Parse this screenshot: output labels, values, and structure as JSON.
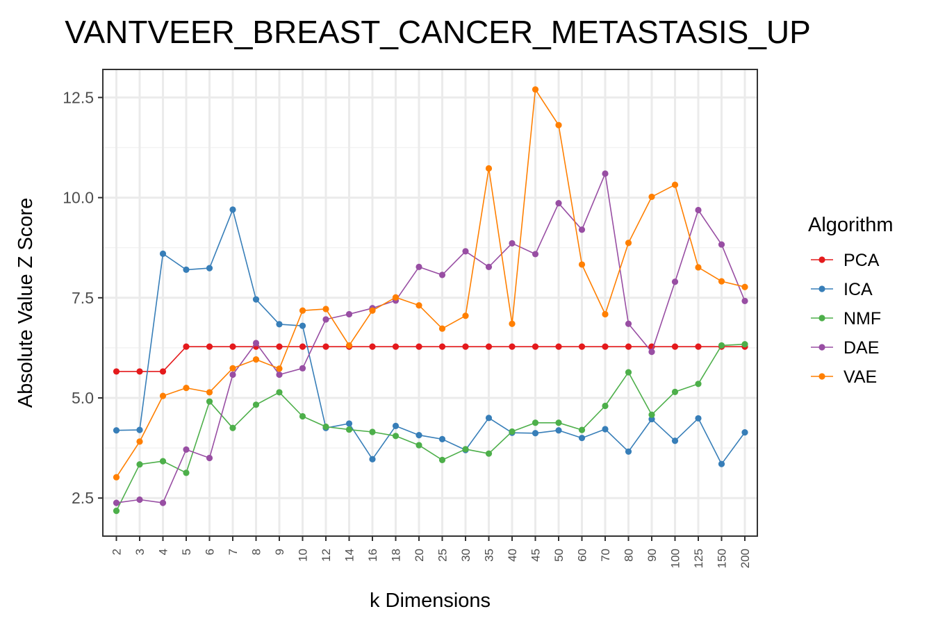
{
  "chart_data": {
    "type": "line",
    "title": "VANTVEER_BREAST_CANCER_METASTASIS_UP",
    "xlabel": "k Dimensions",
    "ylabel": "Absolute Value Z Score",
    "categories": [
      "2",
      "3",
      "4",
      "5",
      "6",
      "7",
      "8",
      "9",
      "10",
      "12",
      "14",
      "16",
      "18",
      "20",
      "25",
      "30",
      "35",
      "40",
      "45",
      "50",
      "60",
      "70",
      "80",
      "90",
      "100",
      "125",
      "150",
      "200"
    ],
    "yticks": [
      "2.5",
      "5.0",
      "7.5",
      "10.0",
      "12.5"
    ],
    "ylim": [
      1.55,
      13.2
    ],
    "grid": true,
    "legend": {
      "title": "Algorithm",
      "position": "right"
    },
    "series": [
      {
        "name": "PCA",
        "color": "#e41a1c",
        "values": [
          5.66,
          5.66,
          5.66,
          6.28,
          6.28,
          6.28,
          6.28,
          6.28,
          6.28,
          6.28,
          6.28,
          6.28,
          6.28,
          6.28,
          6.28,
          6.28,
          6.28,
          6.28,
          6.28,
          6.28,
          6.28,
          6.28,
          6.28,
          6.28,
          6.28,
          6.28,
          6.28,
          6.28
        ]
      },
      {
        "name": "ICA",
        "color": "#377eb8",
        "values": [
          4.19,
          4.2,
          8.6,
          8.2,
          8.24,
          9.7,
          7.46,
          6.84,
          6.8,
          4.25,
          4.36,
          3.47,
          4.3,
          4.07,
          3.97,
          3.7,
          4.5,
          4.13,
          4.12,
          4.19,
          4.0,
          4.22,
          3.66,
          4.47,
          3.93,
          4.49,
          3.35,
          4.14
        ]
      },
      {
        "name": "NMF",
        "color": "#4daf4a",
        "values": [
          2.18,
          3.34,
          3.42,
          3.13,
          4.91,
          4.25,
          4.83,
          5.14,
          4.54,
          4.28,
          4.21,
          4.15,
          4.05,
          3.82,
          3.45,
          3.72,
          3.61,
          4.16,
          4.38,
          4.38,
          4.2,
          4.8,
          5.64,
          4.58,
          5.15,
          5.35,
          6.31,
          6.34
        ]
      },
      {
        "name": "DAE",
        "color": "#984ea3",
        "values": [
          2.38,
          2.46,
          2.38,
          3.71,
          3.5,
          5.58,
          6.37,
          5.58,
          5.74,
          6.96,
          7.09,
          7.24,
          7.43,
          8.27,
          8.07,
          8.66,
          8.27,
          8.86,
          8.59,
          9.86,
          9.2,
          10.6,
          6.85,
          6.15,
          7.9,
          9.69,
          8.83,
          7.42
        ]
      },
      {
        "name": "VAE",
        "color": "#ff7f00",
        "values": [
          3.02,
          3.91,
          5.05,
          5.25,
          5.14,
          5.74,
          5.96,
          5.73,
          7.18,
          7.22,
          6.31,
          7.18,
          7.51,
          7.31,
          6.73,
          7.05,
          10.73,
          6.85,
          12.7,
          11.81,
          8.33,
          7.09,
          8.87,
          10.02,
          10.32,
          8.26,
          7.91,
          7.77
        ]
      }
    ]
  }
}
